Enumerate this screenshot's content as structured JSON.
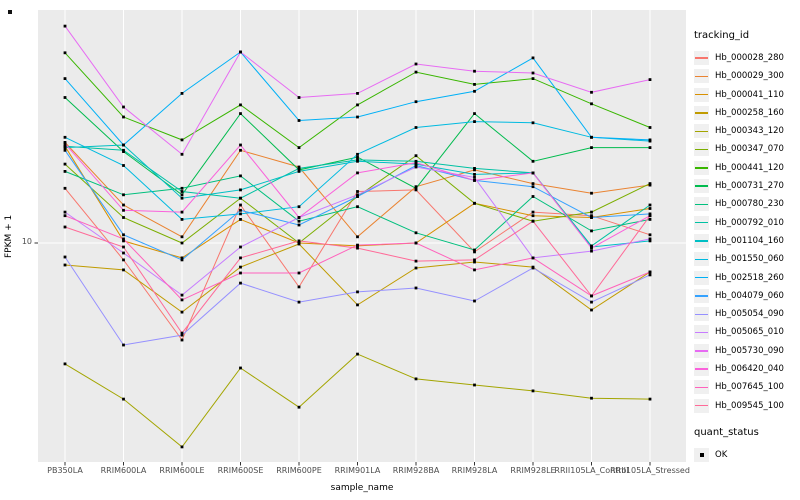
{
  "figure": {
    "bg": "#FFFFFF",
    "panel_bg": "#EBEBEB",
    "grid_color": "#FFFFFF",
    "tick_color": "#333333",
    "tick_label_color": "#4D4D4D",
    "point_color": "#000000"
  },
  "y_axis": {
    "title": "FPKM + 1",
    "tick_label": "10"
  },
  "x_axis": {
    "title": "sample_name"
  },
  "legend": {
    "tracking_title": "tracking_id",
    "quant_title": "quant_status",
    "quant_ok_label": "OK"
  },
  "chart_data": {
    "type": "line",
    "title": "",
    "xlabel": "sample_name",
    "ylabel": "FPKM + 1",
    "yscale": "log10",
    "ylim": [
      3.5,
      30.6
    ],
    "y_breaks": [
      10
    ],
    "grid": "major-only",
    "legend_position": "right",
    "point_shape": "filled-black-square",
    "categories": [
      "PB350LA",
      "RRIM600LA",
      "RRIM600LE",
      "RRIM600SE",
      "RRIM600PE",
      "RRIM901LA",
      "RRIM928BA",
      "RRIM928LA",
      "RRIM928LE",
      "RRII105LA_Control",
      "RRII105LA_Stressed"
    ],
    "series": [
      {
        "name": "Hb_000028_280",
        "color": "#F8766D",
        "values": [
          13.0,
          9.22,
          6.28,
          12.0,
          8.1,
          12.8,
          12.9,
          9.58,
          11.6,
          11.4,
          10.4
        ]
      },
      {
        "name": "Hb_000029_300",
        "color": "#EA8331",
        "values": [
          16.2,
          12.0,
          10.3,
          15.6,
          14.4,
          10.3,
          13.1,
          14.2,
          13.3,
          12.7,
          13.2
        ]
      },
      {
        "name": "Hb_000041_110",
        "color": "#D89000",
        "values": [
          15.9,
          10.1,
          9.31,
          11.2,
          10.0,
          9.86,
          10.0,
          12.1,
          11.4,
          11.3,
          11.8
        ]
      },
      {
        "name": "Hb_000258_160",
        "color": "#C09B00",
        "values": [
          9.0,
          8.79,
          7.18,
          8.91,
          9.95,
          7.43,
          8.87,
          9.13,
          8.91,
          7.25,
          8.7
        ]
      },
      {
        "name": "Hb_000343_120",
        "color": "#A3A500",
        "values": [
          5.6,
          4.73,
          3.76,
          5.49,
          4.55,
          5.87,
          5.21,
          5.06,
          4.92,
          4.75,
          4.73
        ]
      },
      {
        "name": "Hb_000347_070",
        "color": "#7CAE00",
        "values": [
          14.6,
          11.3,
          10.0,
          12.4,
          10.0,
          12.5,
          15.2,
          12.1,
          11.1,
          11.6,
          13.3
        ]
      },
      {
        "name": "Hb_000441_120",
        "color": "#39B600",
        "values": [
          24.9,
          18.3,
          16.4,
          19.4,
          15.8,
          19.4,
          22.7,
          21.4,
          22.0,
          19.5,
          17.4
        ]
      },
      {
        "name": "Hb_000731_270",
        "color": "#00BB4E",
        "values": [
          20.1,
          15.5,
          12.6,
          18.6,
          14.2,
          15.1,
          13.0,
          18.6,
          14.8,
          15.8,
          15.8
        ]
      },
      {
        "name": "Hb_000780_230",
        "color": "#00BF7D",
        "values": [
          14.1,
          12.6,
          13.0,
          13.8,
          11.1,
          11.9,
          10.5,
          9.67,
          12.5,
          10.6,
          11.2
        ]
      },
      {
        "name": "Hb_000792_010",
        "color": "#00C1A3",
        "values": [
          15.9,
          15.6,
          12.8,
          12.4,
          14.3,
          14.9,
          14.8,
          14.3,
          14.0,
          9.86,
          12.0
        ]
      },
      {
        "name": "Hb_001104_160",
        "color": "#00BFC4",
        "values": [
          15.8,
          16.0,
          12.4,
          12.9,
          14.1,
          14.8,
          14.6,
          13.9,
          14.0,
          9.81,
          10.1
        ]
      },
      {
        "name": "Hb_001550_060",
        "color": "#00BAE0",
        "values": [
          16.6,
          14.5,
          11.2,
          11.5,
          11.9,
          15.3,
          17.4,
          17.9,
          17.8,
          16.6,
          16.3
        ]
      },
      {
        "name": "Hb_002518_260",
        "color": "#00B0F6",
        "values": [
          22.0,
          16.0,
          20.5,
          25.0,
          18.0,
          18.3,
          19.7,
          20.7,
          24.3,
          16.6,
          16.4
        ]
      },
      {
        "name": "Hb_004079_060",
        "color": "#35A2FF",
        "values": [
          15.6,
          10.4,
          9.22,
          11.7,
          10.9,
          12.5,
          14.5,
          13.5,
          13.1,
          11.3,
          11.5
        ]
      },
      {
        "name": "Hb_005054_090",
        "color": "#9590FF",
        "values": [
          9.35,
          6.13,
          6.43,
          8.25,
          7.53,
          7.91,
          8.06,
          7.57,
          8.87,
          7.53,
          8.58
        ]
      },
      {
        "name": "Hb_005065_010",
        "color": "#C77CFF",
        "values": [
          11.6,
          9.53,
          7.79,
          9.81,
          11.3,
          12.6,
          14.4,
          13.7,
          9.31,
          9.62,
          10.2
        ]
      },
      {
        "name": "Hb_005730_090",
        "color": "#E76BF3",
        "values": [
          28.3,
          19.2,
          15.3,
          25.0,
          20.1,
          20.5,
          23.6,
          22.8,
          22.6,
          20.6,
          21.9
        ]
      },
      {
        "name": "Hb_006420_040",
        "color": "#FA62DB",
        "values": [
          16.1,
          11.7,
          11.6,
          16.0,
          11.3,
          14.0,
          14.7,
          13.5,
          14.0,
          9.76,
          11.4
        ]
      },
      {
        "name": "Hb_007645_100",
        "color": "#FF62BC",
        "values": [
          11.4,
          10.2,
          7.61,
          8.66,
          8.66,
          9.9,
          10.0,
          8.79,
          9.31,
          7.76,
          8.7
        ]
      },
      {
        "name": "Hb_009545_100",
        "color": "#FF6A98",
        "values": [
          10.8,
          9.81,
          6.49,
          9.31,
          10.1,
          9.76,
          9.17,
          9.22,
          11.1,
          7.76,
          11.4
        ]
      }
    ]
  }
}
